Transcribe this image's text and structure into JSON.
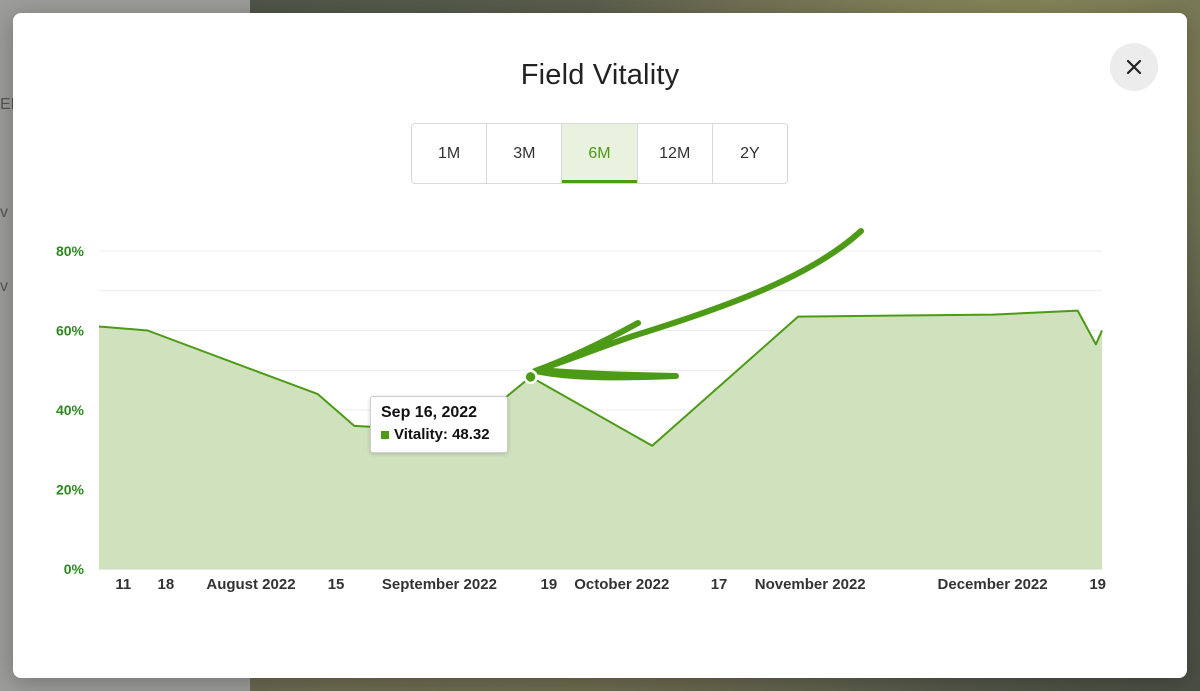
{
  "modal": {
    "title": "Field Vitality",
    "close_icon": "close-icon"
  },
  "range_tabs": [
    {
      "label": "1M",
      "active": false
    },
    {
      "label": "3M",
      "active": false
    },
    {
      "label": "6M",
      "active": true
    },
    {
      "label": "12M",
      "active": false
    },
    {
      "label": "2Y",
      "active": false
    }
  ],
  "tooltip": {
    "date": "Sep 16, 2022",
    "series_label": "Vitality:",
    "value": "48.32"
  },
  "background": {
    "fragments": [
      "ED",
      "v",
      "v"
    ]
  },
  "colors": {
    "accent": "#4c9a16",
    "area_fill": "#cfe2bd",
    "axis_label": "#2d8a1f"
  },
  "chart_data": {
    "type": "area",
    "title": "Field Vitality",
    "xlabel": "",
    "ylabel": "",
    "y_unit": "%",
    "ylim": [
      0,
      80
    ],
    "yticks": [
      0,
      20,
      40,
      60,
      80
    ],
    "ytick_labels": [
      "0%",
      "20%",
      "40%",
      "60%",
      "80%"
    ],
    "grid": true,
    "legend": "none",
    "x_tick_labels": [
      {
        "date": "2022-07-11",
        "label": "11"
      },
      {
        "date": "2022-07-18",
        "label": "18"
      },
      {
        "date": "2022-08-01",
        "label": "August 2022"
      },
      {
        "date": "2022-08-15",
        "label": "15"
      },
      {
        "date": "2022-09-01",
        "label": "September 2022"
      },
      {
        "date": "2022-09-19",
        "label": "19"
      },
      {
        "date": "2022-10-01",
        "label": "October 2022"
      },
      {
        "date": "2022-10-17",
        "label": "17"
      },
      {
        "date": "2022-11-01",
        "label": "November 2022"
      },
      {
        "date": "2022-12-01",
        "label": "December 2022"
      },
      {
        "date": "2022-12-19",
        "label": "19"
      }
    ],
    "x_range": [
      "2022-07-07",
      "2022-12-19"
    ],
    "series": [
      {
        "name": "Vitality",
        "points": [
          {
            "x": "2022-07-07",
            "y": 61
          },
          {
            "x": "2022-07-15",
            "y": 60
          },
          {
            "x": "2022-08-12",
            "y": 44
          },
          {
            "x": "2022-08-18",
            "y": 36
          },
          {
            "x": "2022-09-05",
            "y": 34.5
          },
          {
            "x": "2022-09-16",
            "y": 48.32
          },
          {
            "x": "2022-10-06",
            "y": 31
          },
          {
            "x": "2022-10-30",
            "y": 63.5
          },
          {
            "x": "2022-12-01",
            "y": 64
          },
          {
            "x": "2022-12-15",
            "y": 65
          },
          {
            "x": "2022-12-18",
            "y": 56.5
          },
          {
            "x": "2022-12-19",
            "y": 60
          }
        ]
      }
    ],
    "highlight": {
      "x": "2022-09-16",
      "y": 48.32
    }
  }
}
